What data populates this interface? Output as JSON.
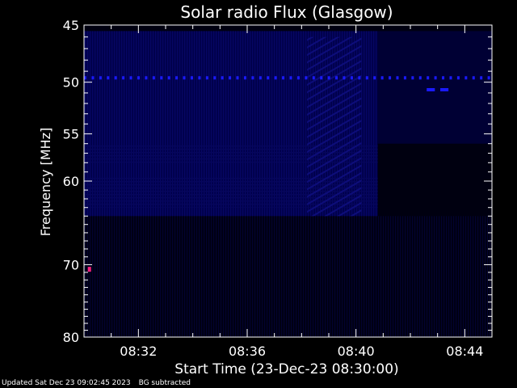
{
  "chart_data": {
    "type": "heatmap",
    "title": "Solar radio Flux (Glasgow)",
    "xlabel": "Start Time (23-Dec-23 08:30:00)",
    "ylabel": "Frequency [MHz]",
    "x_unit": "minutes after 08:30:00",
    "xlim": [
      0,
      15
    ],
    "ylim": [
      45,
      80
    ],
    "y_scale": "log",
    "x_ticks": [
      {
        "value": 2,
        "label": "08:32"
      },
      {
        "value": 6,
        "label": "08:36"
      },
      {
        "value": 10,
        "label": "08:40"
      },
      {
        "value": 14,
        "label": "08:44"
      }
    ],
    "y_ticks": [
      {
        "value": 45,
        "label": "45"
      },
      {
        "value": 50,
        "label": "50"
      },
      {
        "value": 55,
        "label": "55"
      },
      {
        "value": 60,
        "label": "60"
      },
      {
        "value": 70,
        "label": "70"
      },
      {
        "value": 80,
        "label": "80"
      }
    ],
    "grid": false,
    "colors": {
      "background": "#000000",
      "axes": "#ffffff",
      "spectrogram": "#00004a",
      "burst": "#1a1aff",
      "hot_pixel": "#ff2080"
    },
    "features": [
      {
        "type": "horizontal_band",
        "freq_mhz": 49.6,
        "from_min": 0,
        "to_min": 15
      },
      {
        "type": "patch",
        "freq_mhz": 50.7,
        "from_min": 12.6,
        "to_min": 12.9
      },
      {
        "type": "patch",
        "freq_mhz": 50.7,
        "from_min": 13.1,
        "to_min": 13.4
      },
      {
        "type": "point",
        "freq_mhz": 70.6,
        "at_min": 0.2
      }
    ]
  },
  "footer": {
    "updated": "Updated Sat Dec 23 09:02:45 2023",
    "note": "BG subtracted"
  }
}
